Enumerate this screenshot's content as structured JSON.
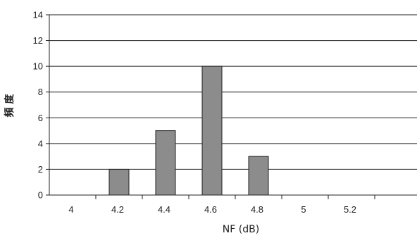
{
  "chart_data": {
    "type": "bar",
    "categories": [
      "4",
      "4.2",
      "4.4",
      "4.6",
      "4.8",
      "5",
      "5.2",
      ""
    ],
    "values": [
      0,
      2,
      5,
      10,
      3,
      0,
      0,
      0
    ],
    "xlabel": "NF (dB)",
    "ylabel": "頻 度",
    "ylim": [
      0,
      14
    ],
    "yticks": [
      0,
      2,
      4,
      6,
      8,
      10,
      12,
      14
    ],
    "grid": true,
    "legend": "none",
    "colors": {
      "bar_fill": "#8c8c8c",
      "bar_stroke": "#222222",
      "grid": "#222222",
      "text": "#222222"
    }
  }
}
